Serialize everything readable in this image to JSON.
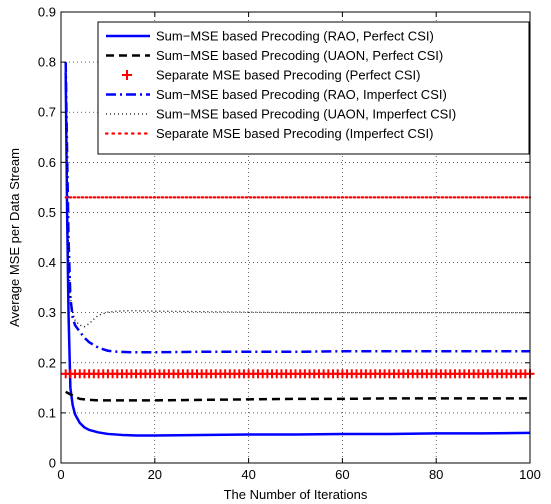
{
  "chart_data": {
    "type": "line",
    "title": "",
    "xlabel": "The Number of Iterations",
    "ylabel": "Average MSE per Data Stream",
    "xlim": [
      0,
      100
    ],
    "ylim": [
      0,
      0.9
    ],
    "xticks": [
      "0",
      "20",
      "40",
      "60",
      "80",
      "100"
    ],
    "yticks": [
      "0",
      "0.1",
      "0.2",
      "0.3",
      "0.4",
      "0.5",
      "0.6",
      "0.7",
      "0.8",
      "0.9"
    ],
    "grid": true,
    "legend_position": "top-right",
    "series": [
      {
        "name": "Sum−MSE based Precoding (RAO, Perfect CSI)",
        "color": "#0000ff",
        "style": "solid",
        "x": [
          1,
          1.3,
          1.6,
          2,
          2.5,
          3,
          4,
          5,
          6,
          8,
          10,
          13,
          16,
          20,
          30,
          40,
          50,
          60,
          70,
          80,
          90,
          100
        ],
        "y": [
          0.78,
          0.5,
          0.3,
          0.15,
          0.115,
          0.097,
          0.08,
          0.071,
          0.066,
          0.061,
          0.058,
          0.056,
          0.055,
          0.055,
          0.056,
          0.057,
          0.057,
          0.058,
          0.058,
          0.059,
          0.059,
          0.06
        ]
      },
      {
        "name": "Sum−MSE based Precoding (UAON, Perfect CSI)",
        "color": "#000000",
        "style": "dashed",
        "x": [
          1,
          2,
          3,
          4,
          5,
          6,
          8,
          10,
          15,
          20,
          30,
          40,
          50,
          60,
          70,
          80,
          90,
          100
        ],
        "y": [
          0.142,
          0.137,
          0.132,
          0.128,
          0.127,
          0.126,
          0.125,
          0.125,
          0.125,
          0.125,
          0.126,
          0.127,
          0.128,
          0.128,
          0.129,
          0.129,
          0.129,
          0.129
        ]
      },
      {
        "name": "Separate MSE based Precoding (Perfect CSI)",
        "color": "#ff0000",
        "style": "plus",
        "x": [
          1,
          100
        ],
        "y": [
          0.178,
          0.178
        ]
      },
      {
        "name": "Sum−MSE based Precoding (RAO, Imperfect CSI)",
        "color": "#0000ff",
        "style": "dashdot",
        "x": [
          1,
          1.3,
          1.6,
          2,
          2.5,
          3,
          4,
          5,
          6,
          8,
          10,
          12,
          15,
          20,
          30,
          40,
          50,
          60,
          70,
          80,
          90,
          100
        ],
        "y": [
          0.8,
          0.62,
          0.45,
          0.33,
          0.29,
          0.275,
          0.262,
          0.25,
          0.241,
          0.23,
          0.224,
          0.222,
          0.221,
          0.221,
          0.222,
          0.222,
          0.222,
          0.223,
          0.223,
          0.223,
          0.223,
          0.223
        ]
      },
      {
        "name": "Sum−MSE based Precoding (UAON, Imperfect CSI)",
        "color": "#000000",
        "style": "dotted",
        "x": [
          1,
          1.3,
          1.6,
          2,
          2.5,
          3,
          4,
          5,
          6,
          7,
          8,
          10,
          12,
          15,
          20,
          30,
          40,
          50,
          60,
          70,
          80,
          90,
          100
        ],
        "y": [
          0.7,
          0.55,
          0.42,
          0.33,
          0.3,
          0.285,
          0.275,
          0.272,
          0.278,
          0.287,
          0.295,
          0.301,
          0.303,
          0.304,
          0.303,
          0.302,
          0.301,
          0.3,
          0.3,
          0.3,
          0.3,
          0.3,
          0.3
        ]
      },
      {
        "name": "Separate MSE based Precoding (Imperfect CSI)",
        "color": "#ff0000",
        "style": "dots",
        "x": [
          1,
          100
        ],
        "y": [
          0.53,
          0.53
        ]
      }
    ]
  }
}
